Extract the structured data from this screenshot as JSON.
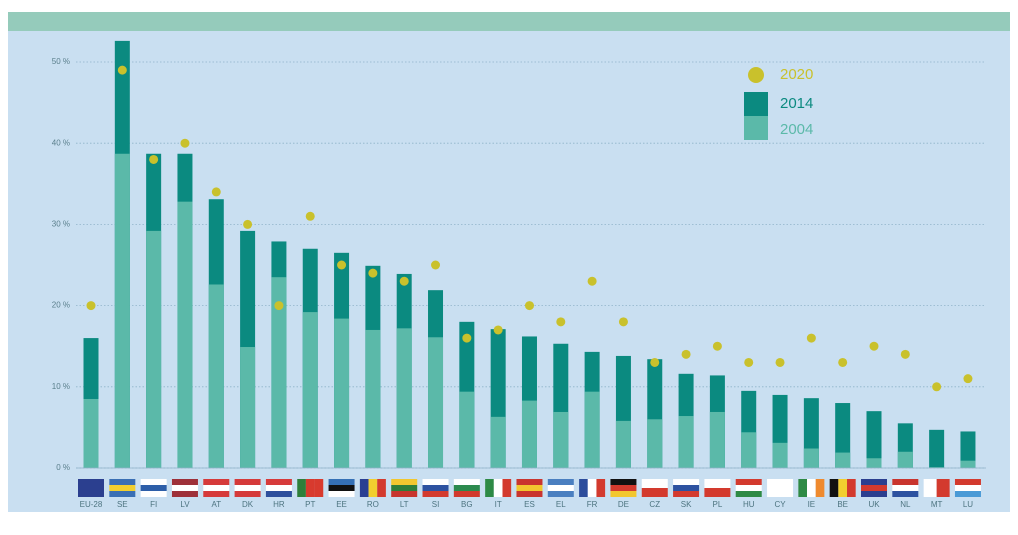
{
  "chart_data": {
    "type": "bar",
    "categories": [
      "EU-28",
      "SE",
      "FI",
      "LV",
      "AT",
      "DK",
      "HR",
      "PT",
      "EE",
      "RO",
      "LT",
      "SI",
      "BG",
      "IT",
      "ES",
      "EL",
      "FR",
      "DE",
      "CZ",
      "SK",
      "PL",
      "HU",
      "CY",
      "IE",
      "BE",
      "UK",
      "NL",
      "MT",
      "LU"
    ],
    "series": [
      {
        "name": "2014",
        "color": "#0b8a80",
        "values": [
          16.0,
          52.6,
          38.7,
          38.7,
          33.1,
          29.2,
          27.9,
          27.0,
          26.5,
          24.9,
          23.9,
          21.9,
          18.0,
          17.1,
          16.2,
          15.3,
          14.3,
          13.8,
          13.4,
          11.6,
          11.4,
          9.5,
          9.0,
          8.6,
          8.0,
          7.0,
          5.5,
          4.7,
          4.5
        ]
      },
      {
        "name": "2004",
        "color": "#5bb9a9",
        "values": [
          8.5,
          38.7,
          29.2,
          32.8,
          22.6,
          14.9,
          23.5,
          19.2,
          18.4,
          17.0,
          17.2,
          16.1,
          9.4,
          6.3,
          8.3,
          6.9,
          9.4,
          5.8,
          6.0,
          6.4,
          6.9,
          4.4,
          3.1,
          2.4,
          1.9,
          1.2,
          2.0,
          0.1,
          0.9
        ]
      },
      {
        "name": "2020",
        "color": "#c9c12c",
        "values": [
          20,
          49,
          38,
          40,
          34,
          30,
          20,
          31,
          25,
          24,
          23,
          25,
          16,
          17,
          20,
          18,
          23,
          18,
          13,
          14,
          15,
          13,
          13,
          16,
          13,
          15,
          14,
          10,
          11
        ]
      }
    ],
    "ylim": [
      0,
      54
    ],
    "yticks": [
      {
        "value": 0,
        "label": "0 %"
      },
      {
        "value": 10,
        "label": "10 %"
      },
      {
        "value": 20,
        "label": "20 %"
      },
      {
        "value": 30,
        "label": "30 %"
      },
      {
        "value": 40,
        "label": "40 %"
      },
      {
        "value": 50,
        "label": "50 %"
      }
    ],
    "grid": true
  }
}
